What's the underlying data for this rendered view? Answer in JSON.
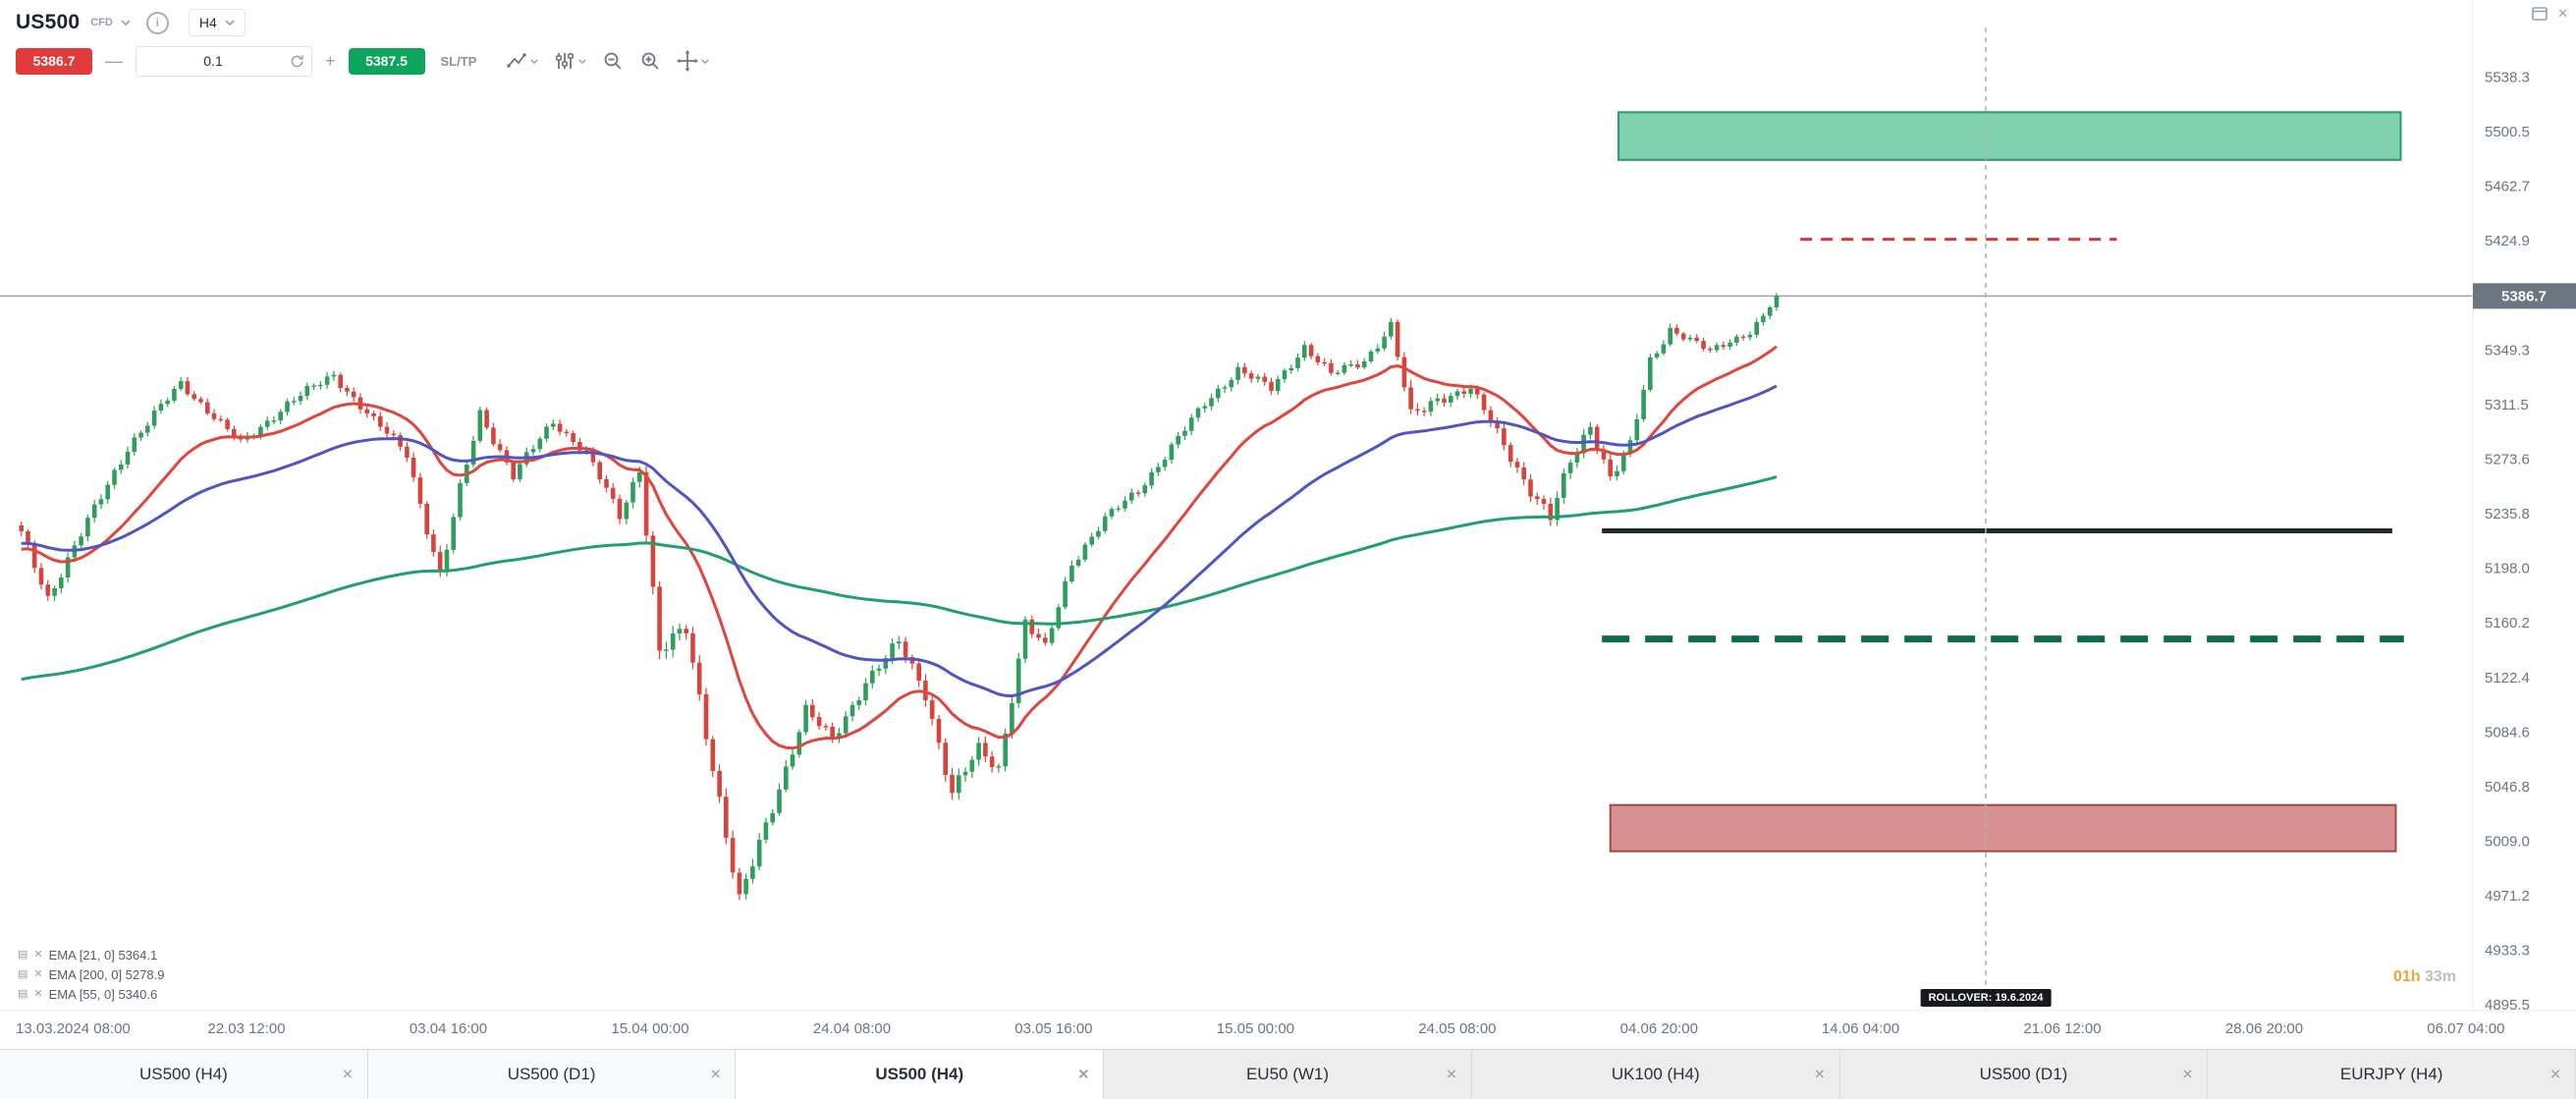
{
  "header": {
    "symbol": "US500",
    "instrument_type": "CFD",
    "timeframe": "H4",
    "sell_price": "5386.7",
    "buy_price": "5387.5",
    "volume": "0.1",
    "sl_tp_label": "SL/TP"
  },
  "icons": {
    "close": "✕",
    "info": "i",
    "minus": "—",
    "plus": "+",
    "indicator_chart": "▤"
  },
  "chart_data": {
    "type": "candlestick",
    "symbol": "US500",
    "timeframe": "H4",
    "current_price": 5386.7,
    "current_price_label": "5386.7",
    "price_axis_ticks": [
      "5538.3",
      "5500.5",
      "5462.7",
      "5424.9",
      "5349.3",
      "5311.5",
      "5273.6",
      "5235.8",
      "5198.0",
      "5160.2",
      "5122.4",
      "5084.6",
      "5046.8",
      "5009.0",
      "4971.2",
      "4933.3",
      "4895.5"
    ],
    "time_axis": {
      "labels": [
        "13.03.2024 08:00",
        "22.03 12:00",
        "03.04 16:00",
        "15.04 00:00",
        "24.04 08:00",
        "03.05 16:00",
        "15.05 00:00",
        "24.05 08:00",
        "04.06 20:00",
        "14.06 04:00",
        "21.06 12:00",
        "28.06 20:00",
        "06.07 04:00"
      ],
      "fractions": [
        0.0086,
        0.0997,
        0.1813,
        0.2629,
        0.3445,
        0.4261,
        0.5077,
        0.5893,
        0.6709,
        0.7524,
        0.834,
        0.9156,
        0.9972
      ]
    },
    "candle_count": 265,
    "price_path": [
      [
        0,
        5222,
        7
      ],
      [
        4,
        5178,
        7
      ],
      [
        10,
        5230,
        7
      ],
      [
        16,
        5282,
        7
      ],
      [
        24,
        5326,
        6
      ],
      [
        28,
        5308,
        6
      ],
      [
        33,
        5284,
        6
      ],
      [
        40,
        5312,
        6
      ],
      [
        47,
        5332,
        6
      ],
      [
        53,
        5300,
        6
      ],
      [
        58,
        5278,
        7
      ],
      [
        63,
        5192,
        9
      ],
      [
        66,
        5252,
        8
      ],
      [
        69,
        5306,
        7
      ],
      [
        74,
        5262,
        7
      ],
      [
        80,
        5300,
        6
      ],
      [
        85,
        5278,
        6
      ],
      [
        90,
        5234,
        7
      ],
      [
        93,
        5268,
        8
      ],
      [
        96,
        5140,
        12
      ],
      [
        100,
        5155,
        10
      ],
      [
        104,
        5062,
        11
      ],
      [
        108,
        4966,
        12
      ],
      [
        111,
        5006,
        10
      ],
      [
        115,
        5060,
        9
      ],
      [
        118,
        5100,
        8
      ],
      [
        122,
        5078,
        8
      ],
      [
        127,
        5120,
        8
      ],
      [
        132,
        5146,
        8
      ],
      [
        136,
        5112,
        9
      ],
      [
        140,
        5042,
        10
      ],
      [
        144,
        5072,
        9
      ],
      [
        147,
        5060,
        9
      ],
      [
        151,
        5160,
        9
      ],
      [
        154,
        5142,
        7
      ],
      [
        158,
        5202,
        7
      ],
      [
        163,
        5232,
        6
      ],
      [
        168,
        5252,
        6
      ],
      [
        173,
        5282,
        6
      ],
      [
        178,
        5312,
        6
      ],
      [
        183,
        5336,
        6
      ],
      [
        188,
        5322,
        6
      ],
      [
        193,
        5352,
        6
      ],
      [
        197,
        5332,
        6
      ],
      [
        202,
        5342,
        6
      ],
      [
        206,
        5366,
        7
      ],
      [
        209,
        5302,
        10
      ],
      [
        213,
        5316,
        7
      ],
      [
        218,
        5322,
        6
      ],
      [
        222,
        5292,
        7
      ],
      [
        227,
        5252,
        8
      ],
      [
        230,
        5232,
        9
      ],
      [
        233,
        5272,
        9
      ],
      [
        236,
        5298,
        8
      ],
      [
        239,
        5260,
        9
      ],
      [
        242,
        5282,
        8
      ],
      [
        245,
        5342,
        7
      ],
      [
        248,
        5364,
        6
      ],
      [
        251,
        5356,
        5
      ],
      [
        254,
        5348,
        5
      ],
      [
        257,
        5356,
        5
      ],
      [
        260,
        5362,
        5
      ],
      [
        262,
        5372,
        5
      ],
      [
        264,
        5387,
        5
      ]
    ],
    "colors": {
      "up": "#2e9e5b",
      "down": "#d8443c",
      "current_line": "#9aa3ad",
      "current_badge": "#6b7681"
    },
    "emas": [
      {
        "label": "EMA [21, 0]",
        "value": "5364.1",
        "period": 21,
        "seed": 5210,
        "color": "#e0453e"
      },
      {
        "label": "EMA [200, 0]",
        "value": "5278.9",
        "period": 200,
        "seed": 5120,
        "color": "#21a06d"
      },
      {
        "label": "EMA [55, 0]",
        "value": "5340.6",
        "period": 55,
        "seed": 5215,
        "color": "#4f55c5"
      }
    ],
    "drawings": [
      {
        "name": "supply-zone",
        "type": "zone",
        "price_top": 5514,
        "price_bottom": 5481,
        "x0": 0.6545,
        "x1": 0.9708,
        "fill": "#80d2af",
        "stroke": "#27996f"
      },
      {
        "name": "resistance-dashed-red-line",
        "type": "hline",
        "price": 5426,
        "x0": 0.728,
        "x1": 0.856,
        "color": "#d63a31",
        "width": 3,
        "dash": "12,9"
      },
      {
        "name": "support-black-line",
        "type": "hline",
        "price": 5224,
        "x0": 0.6478,
        "x1": 0.9674,
        "color": "#23272e",
        "width": 5,
        "dash": ""
      },
      {
        "name": "support-dashed-green-line",
        "type": "hline",
        "price": 5149,
        "x0": 0.6478,
        "x1": 0.9721,
        "color": "#0d6b4a",
        "width": 7,
        "dash": "28,16"
      },
      {
        "name": "demand-zone",
        "type": "zone",
        "price_top": 5034,
        "price_bottom": 5002,
        "x0": 0.6512,
        "x1": 0.9688,
        "fill": "#d89191",
        "stroke": "#9c4a45"
      },
      {
        "name": "rollover-vline",
        "type": "vline",
        "x": 0.803,
        "color": "#a9b0b8",
        "width": 1.5,
        "dash": "5,5"
      }
    ],
    "rollover_label": "ROLLOVER: 19.6.2024",
    "countdown": {
      "hours": "01h",
      "minutes": "33m"
    }
  },
  "tabs": [
    {
      "label": "US500 (H4)",
      "active": false,
      "muted": false
    },
    {
      "label": "US500 (D1)",
      "active": false,
      "muted": false
    },
    {
      "label": "US500 (H4)",
      "active": true,
      "muted": false
    },
    {
      "label": "EU50 (W1)",
      "active": false,
      "muted": true
    },
    {
      "label": "UK100 (H4)",
      "active": false,
      "muted": true
    },
    {
      "label": "US500 (D1)",
      "active": false,
      "muted": true
    },
    {
      "label": "EURJPY (H4)",
      "active": false,
      "muted": true
    }
  ]
}
